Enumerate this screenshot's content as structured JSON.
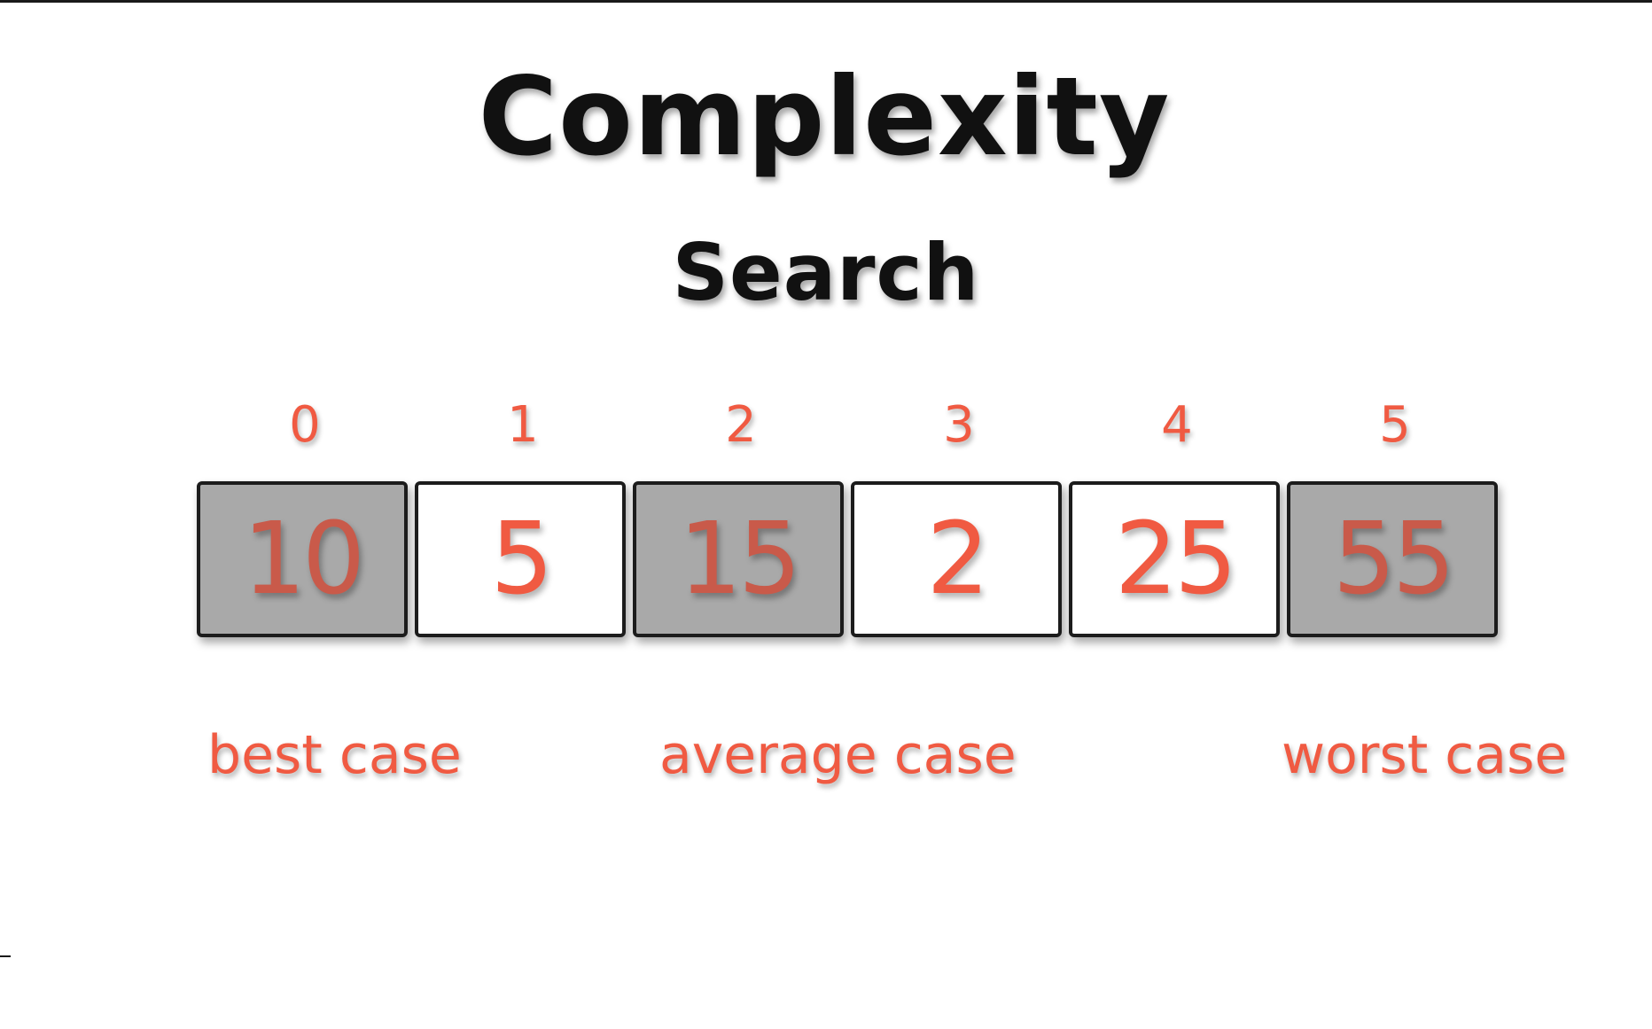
{
  "slide": {
    "title": "Complexity",
    "subtitle": "Search"
  },
  "array": {
    "cells": [
      {
        "index": "0",
        "value": "10",
        "highlighted": true
      },
      {
        "index": "1",
        "value": "5",
        "highlighted": false
      },
      {
        "index": "2",
        "value": "15",
        "highlighted": true
      },
      {
        "index": "3",
        "value": "2",
        "highlighted": false
      },
      {
        "index": "4",
        "value": "25",
        "highlighted": false
      },
      {
        "index": "5",
        "value": "55",
        "highlighted": true
      }
    ]
  },
  "cases": {
    "best": "best case",
    "average": "average case",
    "worst": "worst case"
  },
  "colors": {
    "accent": "#f05a42",
    "highlight_fill": "#a9a9a9",
    "title": "#111111"
  }
}
